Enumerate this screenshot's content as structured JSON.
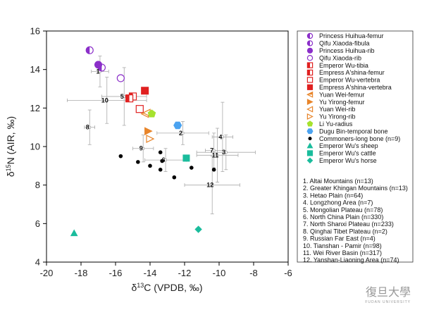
{
  "chart_data": {
    "type": "scatter",
    "title": "",
    "xlabel_parts": {
      "delta": "δ",
      "sup": "13",
      "rest": "C (VPDB, ‰)"
    },
    "ylabel_parts": {
      "delta": "δ",
      "sup": "15",
      "rest": "N (AIR, ‰)"
    },
    "xlim": [
      -20,
      -6
    ],
    "ylim": [
      4,
      16
    ],
    "xticks": [
      -20,
      -18,
      -16,
      -14,
      -12,
      -10,
      -8,
      -6
    ],
    "yticks": [
      4,
      6,
      8,
      10,
      12,
      14,
      16
    ],
    "xtick_labels": [
      "-20",
      "-18",
      "-16",
      "-14",
      "-12",
      "-10",
      "-8",
      "-6"
    ],
    "ytick_labels": [
      "4",
      "6",
      "8",
      "10",
      "12",
      "14",
      "16"
    ],
    "series": [
      {
        "name": "Princess Huihua-femur",
        "marker": "circle-half",
        "color": "#8B2FC9",
        "points": [
          [
            -17.5,
            15.0
          ]
        ]
      },
      {
        "name": "Qifu Xiaoda-fibula",
        "marker": "circle-half",
        "color": "#8B2FC9",
        "points": [
          [
            -16.8,
            14.1
          ]
        ]
      },
      {
        "name": "Princess Huihua-rib",
        "marker": "circle-filled",
        "color": "#8B2FC9",
        "points": [
          [
            -17.0,
            14.25
          ]
        ]
      },
      {
        "name": "Qifu Xiaoda-rib",
        "marker": "circle-open",
        "color": "#8B2FC9",
        "points": [
          [
            -15.7,
            13.55
          ]
        ]
      },
      {
        "name": "Emperor Wu-tibia",
        "marker": "square-half",
        "color": "#E02020",
        "points": [
          [
            -15.0,
            12.6
          ]
        ]
      },
      {
        "name": "Empress A'shina-femur",
        "marker": "square-half",
        "color": "#E02020",
        "points": [
          [
            -15.2,
            12.5
          ]
        ]
      },
      {
        "name": "Emperor Wu-vertebra",
        "marker": "square-open",
        "color": "#E02020",
        "points": [
          [
            -14.6,
            11.95
          ]
        ]
      },
      {
        "name": "Empress A'shina-vertebra",
        "marker": "square-filled",
        "color": "#E02020",
        "points": [
          [
            -14.3,
            12.9
          ]
        ]
      },
      {
        "name": "Yuan Wei-femur",
        "marker": "tri-left-half",
        "color": "#E8852A",
        "points": [
          [
            -14.3,
            11.7
          ]
        ]
      },
      {
        "name": "Yu Yirong-femur",
        "marker": "tri-right-filled",
        "color": "#E8852A",
        "points": [
          [
            -14.1,
            10.8
          ]
        ]
      },
      {
        "name": "Yuan Wei-rib",
        "marker": "tri-left-open",
        "color": "#E8852A",
        "points": [
          [
            -14.2,
            11.75
          ]
        ]
      },
      {
        "name": "Yu Yirong-rib",
        "marker": "tri-right-open",
        "color": "#E8852A",
        "points": [
          [
            -14.0,
            10.4
          ]
        ]
      },
      {
        "name": "Li Yu-radius",
        "marker": "pentagon-filled",
        "color": "#A6E22E",
        "points": [
          [
            -13.9,
            11.7
          ]
        ]
      },
      {
        "name": "Dugu Bin-temporal bone",
        "marker": "hexagon-filled",
        "color": "#4BA3F0",
        "points": [
          [
            -12.4,
            11.1
          ]
        ]
      },
      {
        "name": "Commoners-long bone (n=9)",
        "marker": "dot",
        "color": "#000000",
        "points": [
          [
            -15.7,
            9.5
          ],
          [
            -14.7,
            9.2
          ],
          [
            -13.4,
            9.7
          ],
          [
            -14.0,
            9.0
          ],
          [
            -13.3,
            9.25
          ],
          [
            -13.4,
            8.8
          ],
          [
            -11.6,
            8.9
          ],
          [
            -10.3,
            8.8
          ],
          [
            -12.6,
            8.4
          ]
        ]
      },
      {
        "name": "Emperor Wu's sheep",
        "marker": "triangle-up",
        "color": "#1ABC9C",
        "points": [
          [
            -18.4,
            5.5
          ]
        ]
      },
      {
        "name": "Emperor Wu's cattle",
        "marker": "square-filled",
        "color": "#1ABC9C",
        "points": [
          [
            -11.9,
            9.4
          ]
        ]
      },
      {
        "name": "Emperor Wu's horse",
        "marker": "diamond",
        "color": "#1ABC9C",
        "points": [
          [
            -11.2,
            5.7
          ]
        ]
      }
    ],
    "regions": [
      {
        "num": "1",
        "x": -16.9,
        "y": 13.9,
        "xerr": 0.5,
        "yerr": 0.8
      },
      {
        "num": "2",
        "x": -12.1,
        "y": 10.7,
        "xerr": 1.5,
        "yerr": 0.6
      },
      {
        "name_hidden": true,
        "num": "3",
        "x": -9.6,
        "y": 9.7,
        "xerr": 1.7,
        "yerr": 0.9
      },
      {
        "num": "4",
        "x": -9.8,
        "y": 10.5,
        "xerr": 0.6,
        "yerr": 1.8
      },
      {
        "num": "5",
        "x": -15.5,
        "y": 12.6,
        "xerr": 1.3,
        "yerr": 1.5
      },
      {
        "num": "6",
        "x": -13.1,
        "y": 9.3,
        "xerr": 1.2,
        "yerr": 0.6
      },
      {
        "num": "7",
        "x": -10.3,
        "y": 9.8,
        "xerr": 0.5,
        "yerr": 0.9
      },
      {
        "num": "8",
        "x": -17.5,
        "y": 11.0,
        "xerr": 0.3,
        "yerr": 0.9
      },
      {
        "num": "9",
        "x": -14.4,
        "y": 9.9,
        "xerr": 0.6,
        "yerr": 0.7
      },
      {
        "num": "10",
        "x": -16.5,
        "y": 12.4,
        "xerr": 2.3,
        "yerr": 1.2
      },
      {
        "num": "11",
        "x": -10.1,
        "y": 9.55,
        "xerr": 1.2,
        "yerr": 1.4
      },
      {
        "num": "12",
        "x": -10.4,
        "y": 8.0,
        "xerr": 1.6,
        "yerr": 1.5
      }
    ],
    "legend_placement": "right",
    "grid": false
  },
  "region_list": [
    "1. Altai Mountains (n=13)",
    "2. Greater Khingan Mountains (n=13)",
    "3. Hetao Plain (n=64)",
    "4. Longzhong Area (n=7)",
    "5. Mongolian Plateau (n=78)",
    "6. North China Plain (n=330)",
    "7. North Shanxi Plateau (n=233)",
    "8. Qinghai Tibet Plateau (n=2)",
    "9. Russian Far East (n=4)",
    "10. Tianshan - Pamir (n=98)",
    "11. Wei River Basin (n=317)",
    "12. Yanshan-Liaoning Area (n=74)"
  ],
  "watermark": {
    "main": "復旦大學",
    "sub": "FUDAN UNIVERSITY"
  }
}
